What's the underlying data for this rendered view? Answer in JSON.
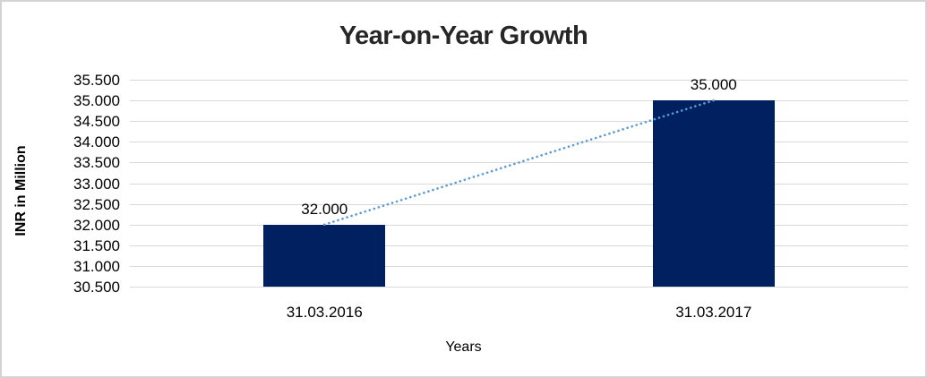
{
  "chart_data": {
    "type": "bar",
    "title": "Year-on-Year Growth",
    "xlabel": "Years",
    "ylabel": "INR in Million",
    "categories": [
      "31.03.2016",
      "31.03.2017"
    ],
    "values": [
      32.0,
      35.0
    ],
    "value_labels": [
      "32.000",
      "35.000"
    ],
    "ylim": [
      30.5,
      35.5
    ],
    "ytick_step": 0.5,
    "yticks": [
      30.5,
      31.0,
      31.5,
      32.0,
      32.5,
      33.0,
      33.5,
      34.0,
      34.5,
      35.0,
      35.5
    ],
    "ytick_labels": [
      "30.500",
      "31.000",
      "31.500",
      "32.000",
      "32.500",
      "33.000",
      "33.500",
      "34.000",
      "34.500",
      "35.000",
      "35.500"
    ],
    "grid": true,
    "legend": false,
    "colors": {
      "bar": "#002060",
      "trendline": "#5b9bd5",
      "gridline": "#d9d9d9",
      "frame_border": "#d4d4d4",
      "title_text": "#262626",
      "axis_text": "#000000"
    },
    "trendline": {
      "style": "dotted",
      "from": {
        "category": "31.03.2016",
        "value": 32.0
      },
      "to": {
        "category": "31.03.2017",
        "value": 35.0
      }
    }
  }
}
